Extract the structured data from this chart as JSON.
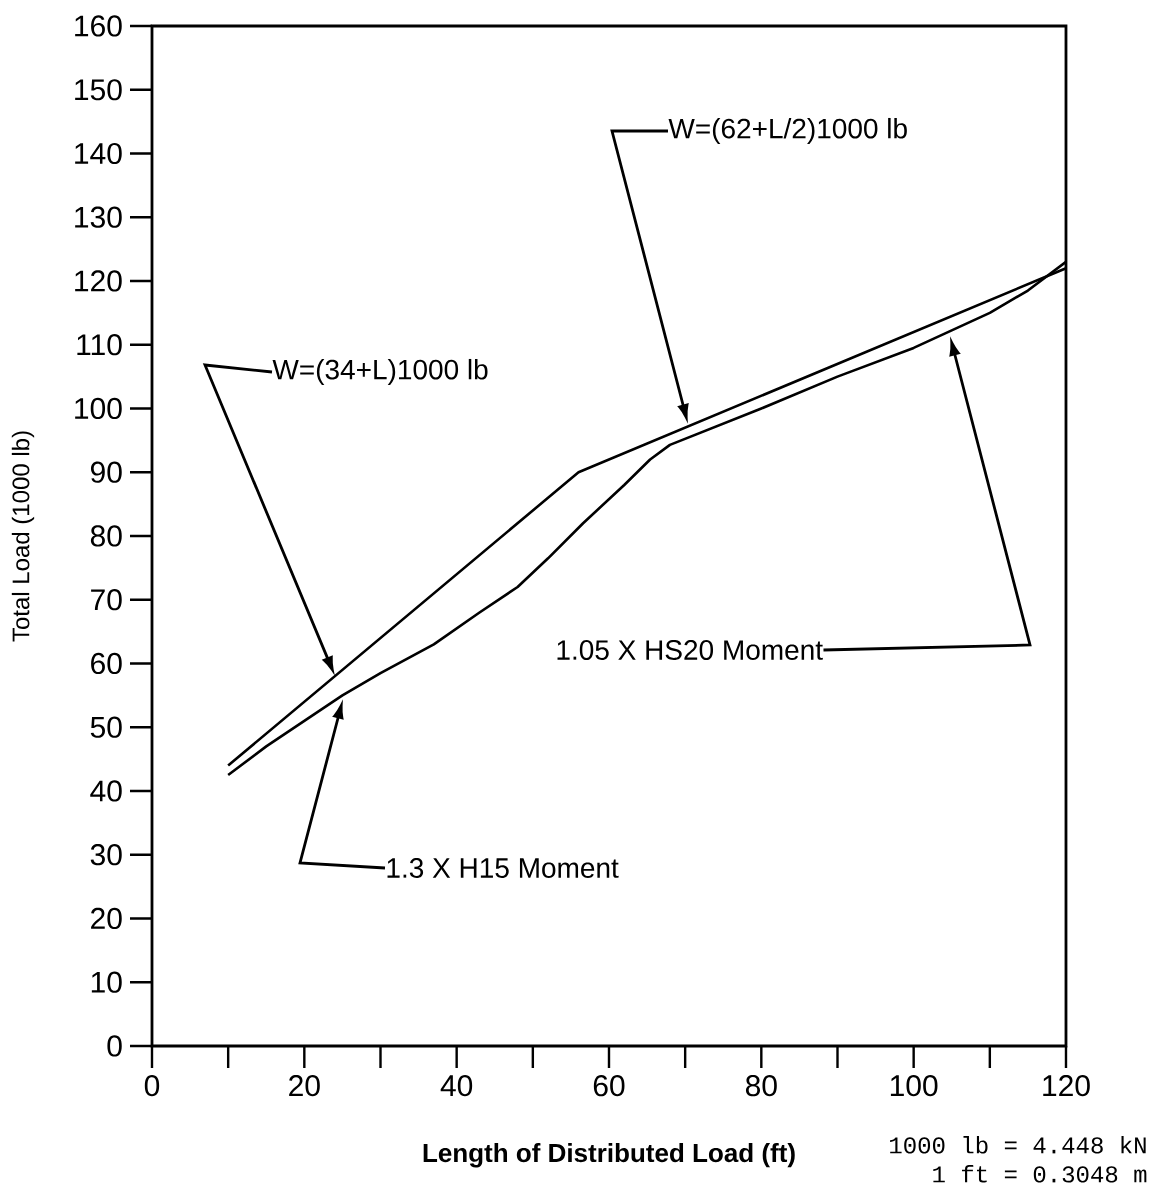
{
  "chart_data": {
    "type": "line",
    "xlabel": "Length of Distributed Load (ft)",
    "ylabel": "Total Load (1000 lb)",
    "xlim": [
      0,
      120
    ],
    "ylim": [
      0,
      160
    ],
    "xticks": [
      0,
      20,
      40,
      60,
      80,
      100,
      120
    ],
    "yticks": [
      0,
      10,
      20,
      30,
      40,
      50,
      60,
      70,
      80,
      90,
      100,
      110,
      120,
      130,
      140,
      150,
      160
    ],
    "grid": false,
    "marker": "none",
    "line_style": "solid",
    "series": [
      {
        "color": "#000000",
        "x": [
          10,
          56,
          120
        ],
        "values": [
          44,
          90,
          122
        ]
      },
      {
        "color": "#000000",
        "x": [
          10,
          15,
          20,
          25,
          30,
          37,
          43,
          48,
          52,
          56.6,
          62,
          65.4,
          68,
          80,
          90,
          100,
          110,
          115,
          120
        ],
        "values": [
          42.5,
          47,
          51,
          55,
          58.5,
          63,
          68,
          72,
          76.5,
          82,
          88,
          92,
          94.3,
          100,
          105,
          109.5,
          115,
          118.5,
          123
        ]
      }
    ],
    "annotations": [
      "W=(34+L)1000 lb",
      "W=(62+L/2)1000 lb",
      "1.3 X H15 Moment",
      "1.05 X HS20 Moment",
      "1000 lb = 4.448 kN",
      "1 ft = 0.3048 m"
    ]
  }
}
